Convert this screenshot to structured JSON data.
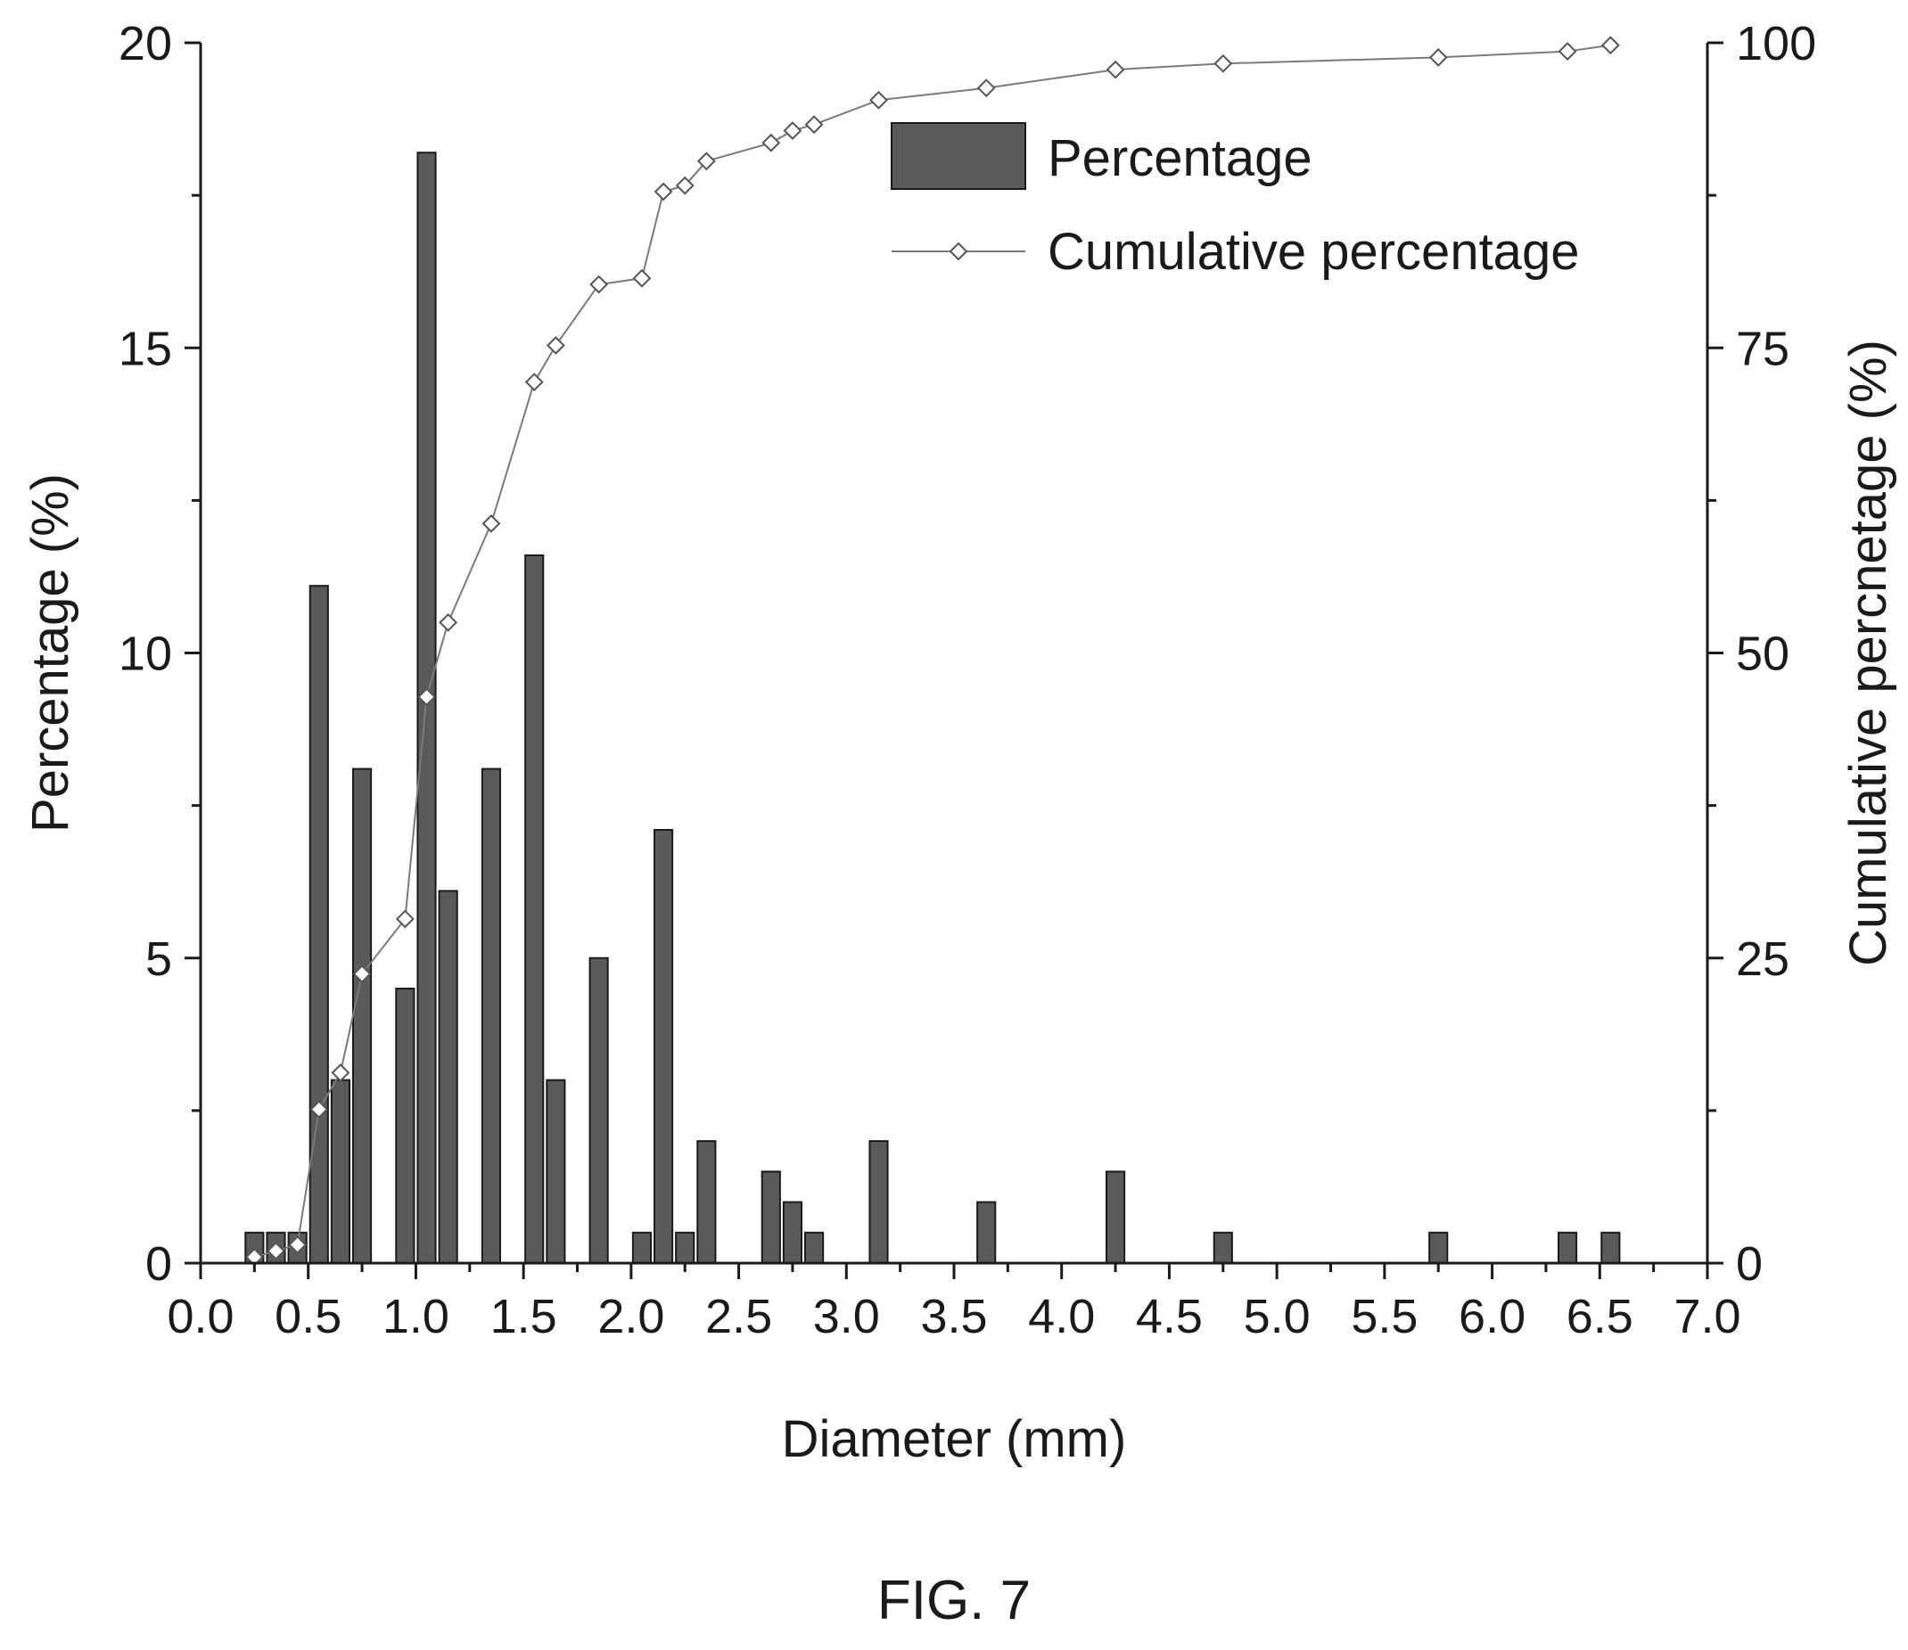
{
  "figure": {
    "caption": "FIG. 7"
  },
  "chart_data": {
    "type": "bar",
    "xlabel": "Diameter (mm)",
    "ylabel": "Percentage (%)",
    "y2label": "Cumulative percnetage (%)",
    "xlim": [
      0.0,
      7.0
    ],
    "ylim": [
      0,
      20
    ],
    "y2lim": [
      0,
      100
    ],
    "xticks": [
      "0.0",
      "0.5",
      "1.0",
      "1.5",
      "2.0",
      "2.5",
      "3.0",
      "3.5",
      "4.0",
      "4.5",
      "5.0",
      "5.5",
      "6.0",
      "6.5",
      "7.0"
    ],
    "yticks": [
      "0",
      "5",
      "10",
      "15",
      "20"
    ],
    "y2ticks": [
      "0",
      "25",
      "50",
      "75",
      "100"
    ],
    "legend_position": "top-right",
    "grid": false,
    "series": [
      {
        "name": "Percentage",
        "type": "bar",
        "x": [
          0.25,
          0.35,
          0.45,
          0.55,
          0.65,
          0.75,
          0.95,
          1.05,
          1.15,
          1.35,
          1.55,
          1.65,
          1.85,
          2.05,
          2.15,
          2.25,
          2.35,
          2.65,
          2.75,
          2.85,
          3.15,
          3.65,
          4.25,
          4.75,
          5.75,
          6.35,
          6.55
        ],
        "values": [
          0.5,
          0.5,
          0.5,
          11.1,
          3.0,
          8.1,
          4.5,
          18.2,
          6.1,
          8.1,
          11.6,
          3.0,
          5.0,
          0.5,
          7.1,
          0.5,
          2.0,
          1.5,
          1.0,
          0.5,
          2.0,
          1.0,
          1.5,
          0.5,
          0.5,
          0.5,
          0.5
        ],
        "color": "#5a5a5a"
      },
      {
        "name": "Cumulative percentage",
        "type": "line",
        "x": [
          0.25,
          0.35,
          0.45,
          0.55,
          0.65,
          0.75,
          0.95,
          1.05,
          1.15,
          1.35,
          1.55,
          1.65,
          1.85,
          2.05,
          2.15,
          2.25,
          2.35,
          2.65,
          2.75,
          2.85,
          3.15,
          3.65,
          4.25,
          4.75,
          5.75,
          6.35,
          6.55
        ],
        "values": [
          0.5,
          1.0,
          1.5,
          12.6,
          15.6,
          23.7,
          28.2,
          46.4,
          52.5,
          60.6,
          72.2,
          75.2,
          80.2,
          80.7,
          87.8,
          88.3,
          90.3,
          91.8,
          92.8,
          93.3,
          95.3,
          96.3,
          97.8,
          98.3,
          98.8,
          99.3,
          99.8
        ],
        "color": "#7a7a7a"
      }
    ]
  }
}
